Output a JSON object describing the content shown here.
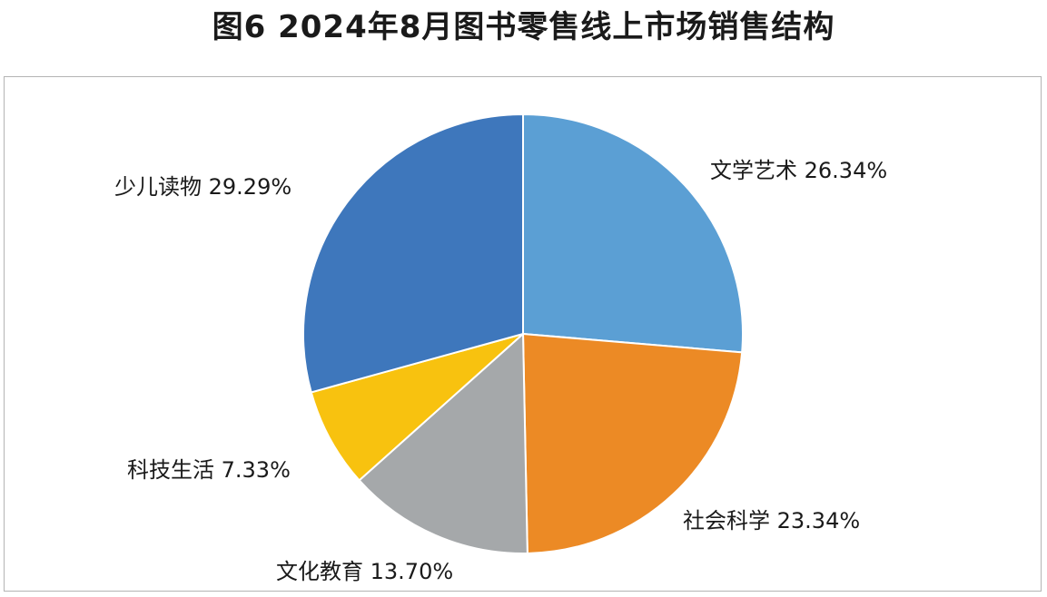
{
  "chart_data": {
    "type": "pie",
    "title": "图6  2024年8月图书零售线上市场销售结构",
    "slices": [
      {
        "name": "文学艺术",
        "value": 26.34,
        "label": "文学艺术 26.34%",
        "color": "#5b9fd4"
      },
      {
        "name": "社会科学",
        "value": 23.34,
        "label": "社会科学 23.34%",
        "color": "#ec8a25"
      },
      {
        "name": "文化教育",
        "value": 13.7,
        "label": "文化教育 13.70%",
        "color": "#a5a8aa"
      },
      {
        "name": "科技生活",
        "value": 7.33,
        "label": "科技生活 7.33%",
        "color": "#f8c20f"
      },
      {
        "name": "少儿读物",
        "value": 29.29,
        "label": "少儿读物 29.29%",
        "color": "#3e77bc"
      }
    ],
    "unit": "%",
    "start_angle": "12 o'clock",
    "direction": "clockwise",
    "legend": "none (direct labels)"
  }
}
